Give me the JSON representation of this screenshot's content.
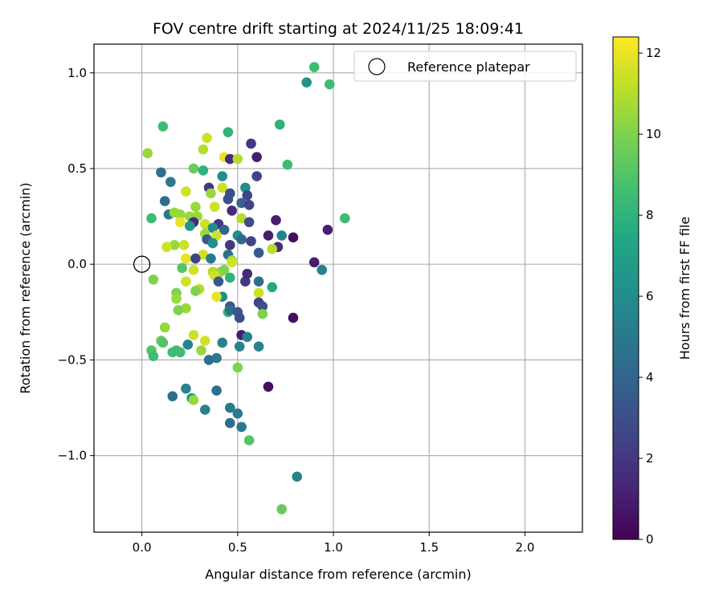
{
  "chart_data": {
    "type": "scatter",
    "title": "FOV centre drift starting at 2024/11/25 18:09:41",
    "xlabel": "Angular distance from reference (arcmin)",
    "ylabel": "Rotation from reference (arcmin)",
    "xlim": [
      -0.25,
      2.3
    ],
    "ylim": [
      -1.4,
      1.15
    ],
    "xticks": [
      0.0,
      0.5,
      1.0,
      1.5,
      2.0
    ],
    "xtick_labels": [
      "0.0",
      "0.5",
      "1.0",
      "1.5",
      "2.0"
    ],
    "yticks": [
      1.0,
      0.5,
      0.0,
      -0.5,
      -1.0
    ],
    "ytick_labels": [
      "1.0",
      "0.5",
      "0.0",
      "−0.5",
      "−1.0"
    ],
    "grid": true,
    "legend": {
      "position": "top-right",
      "entries": [
        "Reference platepar"
      ]
    },
    "reference_point": {
      "x": 0.0,
      "y": 0.0
    },
    "colorbar": {
      "label": "Hours from first FF file",
      "range": [
        0,
        12.4
      ],
      "ticks": [
        0,
        2,
        4,
        6,
        8,
        10,
        12
      ],
      "tick_labels": [
        "0",
        "2",
        "4",
        "6",
        "8",
        "10",
        "12"
      ],
      "colormap": "viridis"
    },
    "points": [
      {
        "x": 0.9,
        "y": 1.03,
        "c": 8.5
      },
      {
        "x": 0.86,
        "y": 0.95,
        "c": 6.3
      },
      {
        "x": 0.98,
        "y": 0.94,
        "c": 8.5
      },
      {
        "x": 0.72,
        "y": 0.73,
        "c": 8.0
      },
      {
        "x": 0.11,
        "y": 0.72,
        "c": 8.5
      },
      {
        "x": 0.45,
        "y": 0.69,
        "c": 8.0
      },
      {
        "x": 0.34,
        "y": 0.66,
        "c": 11.5
      },
      {
        "x": 0.57,
        "y": 0.63,
        "c": 2.0
      },
      {
        "x": 0.32,
        "y": 0.6,
        "c": 11.0
      },
      {
        "x": 0.03,
        "y": 0.58,
        "c": 10.5
      },
      {
        "x": 0.6,
        "y": 0.56,
        "c": 1.0
      },
      {
        "x": 0.43,
        "y": 0.56,
        "c": 12.0
      },
      {
        "x": 0.46,
        "y": 0.55,
        "c": 1.5
      },
      {
        "x": 0.5,
        "y": 0.55,
        "c": 11.0
      },
      {
        "x": 0.76,
        "y": 0.52,
        "c": 8.5
      },
      {
        "x": 0.27,
        "y": 0.5,
        "c": 9.5
      },
      {
        "x": 0.32,
        "y": 0.49,
        "c": 8.0
      },
      {
        "x": 0.1,
        "y": 0.48,
        "c": 4.5
      },
      {
        "x": 0.42,
        "y": 0.46,
        "c": 6.0
      },
      {
        "x": 0.6,
        "y": 0.46,
        "c": 2.5
      },
      {
        "x": 0.15,
        "y": 0.43,
        "c": 5.0
      },
      {
        "x": 0.35,
        "y": 0.4,
        "c": 2.0
      },
      {
        "x": 0.42,
        "y": 0.4,
        "c": 11.5
      },
      {
        "x": 0.54,
        "y": 0.4,
        "c": 6.0
      },
      {
        "x": 0.23,
        "y": 0.38,
        "c": 11.5
      },
      {
        "x": 0.36,
        "y": 0.37,
        "c": 10.5
      },
      {
        "x": 0.46,
        "y": 0.37,
        "c": 3.0
      },
      {
        "x": 0.55,
        "y": 0.36,
        "c": 2.5
      },
      {
        "x": 0.45,
        "y": 0.34,
        "c": 3.0
      },
      {
        "x": 0.12,
        "y": 0.33,
        "c": 4.5
      },
      {
        "x": 0.52,
        "y": 0.32,
        "c": 4.0
      },
      {
        "x": 0.56,
        "y": 0.31,
        "c": 2.5
      },
      {
        "x": 0.28,
        "y": 0.3,
        "c": 10.5
      },
      {
        "x": 0.38,
        "y": 0.3,
        "c": 11.5
      },
      {
        "x": 0.47,
        "y": 0.28,
        "c": 1.5
      },
      {
        "x": 0.14,
        "y": 0.26,
        "c": 5.0
      },
      {
        "x": 0.17,
        "y": 0.27,
        "c": 10.5
      },
      {
        "x": 0.2,
        "y": 0.26,
        "c": 10.5
      },
      {
        "x": 0.29,
        "y": 0.25,
        "c": 10.5
      },
      {
        "x": 0.25,
        "y": 0.25,
        "c": 10.5
      },
      {
        "x": 0.05,
        "y": 0.24,
        "c": 8.5
      },
      {
        "x": 0.52,
        "y": 0.24,
        "c": 11.0
      },
      {
        "x": 0.56,
        "y": 0.22,
        "c": 3.0
      },
      {
        "x": 0.7,
        "y": 0.23,
        "c": 1.0
      },
      {
        "x": 1.06,
        "y": 0.24,
        "c": 8.5
      },
      {
        "x": 0.2,
        "y": 0.22,
        "c": 12.0
      },
      {
        "x": 0.27,
        "y": 0.22,
        "c": 1.5
      },
      {
        "x": 0.33,
        "y": 0.21,
        "c": 11.5
      },
      {
        "x": 0.4,
        "y": 0.21,
        "c": 2.0
      },
      {
        "x": 0.25,
        "y": 0.2,
        "c": 6.5
      },
      {
        "x": 0.37,
        "y": 0.19,
        "c": 6.0
      },
      {
        "x": 0.43,
        "y": 0.18,
        "c": 4.0
      },
      {
        "x": 0.97,
        "y": 0.18,
        "c": 1.0
      },
      {
        "x": 0.33,
        "y": 0.16,
        "c": 10.5
      },
      {
        "x": 0.39,
        "y": 0.15,
        "c": 11.5
      },
      {
        "x": 0.5,
        "y": 0.15,
        "c": 6.0
      },
      {
        "x": 0.73,
        "y": 0.15,
        "c": 5.5
      },
      {
        "x": 0.66,
        "y": 0.15,
        "c": 1.0
      },
      {
        "x": 0.79,
        "y": 0.14,
        "c": 0.5
      },
      {
        "x": 0.34,
        "y": 0.13,
        "c": 3.5
      },
      {
        "x": 0.52,
        "y": 0.13,
        "c": 4.0
      },
      {
        "x": 0.57,
        "y": 0.12,
        "c": 2.5
      },
      {
        "x": 0.17,
        "y": 0.1,
        "c": 10.5
      },
      {
        "x": 0.22,
        "y": 0.1,
        "c": 11.5
      },
      {
        "x": 0.37,
        "y": 0.11,
        "c": 6.0
      },
      {
        "x": 0.46,
        "y": 0.1,
        "c": 2.0
      },
      {
        "x": 0.13,
        "y": 0.09,
        "c": 11.5
      },
      {
        "x": 0.71,
        "y": 0.09,
        "c": 1.5
      },
      {
        "x": 0.68,
        "y": 0.08,
        "c": 11.0
      },
      {
        "x": 0.61,
        "y": 0.06,
        "c": 3.5
      },
      {
        "x": 0.32,
        "y": 0.05,
        "c": 11.5
      },
      {
        "x": 0.45,
        "y": 0.05,
        "c": 4.5
      },
      {
        "x": 0.23,
        "y": 0.03,
        "c": 12.0
      },
      {
        "x": 0.28,
        "y": 0.03,
        "c": 2.5
      },
      {
        "x": 0.36,
        "y": 0.03,
        "c": 5.0
      },
      {
        "x": 0.47,
        "y": 0.02,
        "c": 10.5
      },
      {
        "x": 0.47,
        "y": 0.01,
        "c": 11.5
      },
      {
        "x": 0.9,
        "y": 0.01,
        "c": 1.0
      },
      {
        "x": 0.21,
        "y": -0.02,
        "c": 9.0
      },
      {
        "x": 0.27,
        "y": -0.03,
        "c": 11.5
      },
      {
        "x": 0.94,
        "y": -0.03,
        "c": 5.5
      },
      {
        "x": 0.37,
        "y": -0.04,
        "c": 11.0
      },
      {
        "x": 0.41,
        "y": -0.04,
        "c": 10.5
      },
      {
        "x": 0.43,
        "y": -0.03,
        "c": 10.0
      },
      {
        "x": 0.38,
        "y": -0.06,
        "c": 11.5
      },
      {
        "x": 0.46,
        "y": -0.07,
        "c": 8.0
      },
      {
        "x": 0.61,
        "y": -0.09,
        "c": 4.5
      },
      {
        "x": 0.23,
        "y": -0.09,
        "c": 11.5
      },
      {
        "x": 0.4,
        "y": -0.09,
        "c": 3.5
      },
      {
        "x": 0.06,
        "y": -0.08,
        "c": 10.0
      },
      {
        "x": 0.54,
        "y": -0.09,
        "c": 2.0
      },
      {
        "x": 0.55,
        "y": -0.05,
        "c": 1.5
      },
      {
        "x": 0.68,
        "y": -0.12,
        "c": 7.5
      },
      {
        "x": 0.3,
        "y": -0.13,
        "c": 11.0
      },
      {
        "x": 0.28,
        "y": -0.14,
        "c": 10.0
      },
      {
        "x": 0.61,
        "y": -0.15,
        "c": 11.5
      },
      {
        "x": 0.18,
        "y": -0.15,
        "c": 10.0
      },
      {
        "x": 0.42,
        "y": -0.17,
        "c": 6.0
      },
      {
        "x": 0.39,
        "y": -0.17,
        "c": 12.0
      },
      {
        "x": 0.18,
        "y": -0.18,
        "c": 10.5
      },
      {
        "x": 0.61,
        "y": -0.2,
        "c": 2.5
      },
      {
        "x": 0.46,
        "y": -0.22,
        "c": 3.5
      },
      {
        "x": 0.63,
        "y": -0.22,
        "c": 3.0
      },
      {
        "x": 0.23,
        "y": -0.23,
        "c": 10.5
      },
      {
        "x": 0.19,
        "y": -0.24,
        "c": 10.0
      },
      {
        "x": 0.45,
        "y": -0.25,
        "c": 8.0
      },
      {
        "x": 0.46,
        "y": -0.24,
        "c": 4.5
      },
      {
        "x": 0.5,
        "y": -0.25,
        "c": 3.5
      },
      {
        "x": 0.63,
        "y": -0.26,
        "c": 10.0
      },
      {
        "x": 0.51,
        "y": -0.28,
        "c": 3.0
      },
      {
        "x": 0.79,
        "y": -0.28,
        "c": 0.5
      },
      {
        "x": 0.12,
        "y": -0.33,
        "c": 10.5
      },
      {
        "x": 0.52,
        "y": -0.37,
        "c": 1.0
      },
      {
        "x": 0.55,
        "y": -0.38,
        "c": 5.5
      },
      {
        "x": 0.27,
        "y": -0.37,
        "c": 11.5
      },
      {
        "x": 0.33,
        "y": -0.4,
        "c": 11.5
      },
      {
        "x": 0.1,
        "y": -0.4,
        "c": 9.5
      },
      {
        "x": 0.24,
        "y": -0.42,
        "c": 5.5
      },
      {
        "x": 0.42,
        "y": -0.41,
        "c": 5.5
      },
      {
        "x": 0.11,
        "y": -0.41,
        "c": 9.0
      },
      {
        "x": 0.51,
        "y": -0.43,
        "c": 5.5
      },
      {
        "x": 0.61,
        "y": -0.43,
        "c": 5.5
      },
      {
        "x": 0.31,
        "y": -0.45,
        "c": 10.5
      },
      {
        "x": 0.05,
        "y": -0.45,
        "c": 9.0
      },
      {
        "x": 0.16,
        "y": -0.46,
        "c": 8.5
      },
      {
        "x": 0.18,
        "y": -0.45,
        "c": 8.5
      },
      {
        "x": 0.2,
        "y": -0.46,
        "c": 8.5
      },
      {
        "x": 0.06,
        "y": -0.48,
        "c": 8.5
      },
      {
        "x": 0.39,
        "y": -0.49,
        "c": 5.0
      },
      {
        "x": 0.35,
        "y": -0.5,
        "c": 4.5
      },
      {
        "x": 0.5,
        "y": -0.54,
        "c": 10.0
      },
      {
        "x": 0.66,
        "y": -0.64,
        "c": 0.5
      },
      {
        "x": 0.23,
        "y": -0.65,
        "c": 5.5
      },
      {
        "x": 0.39,
        "y": -0.66,
        "c": 4.5
      },
      {
        "x": 0.16,
        "y": -0.69,
        "c": 4.5
      },
      {
        "x": 0.26,
        "y": -0.7,
        "c": 6.5
      },
      {
        "x": 0.27,
        "y": -0.71,
        "c": 10.5
      },
      {
        "x": 0.46,
        "y": -0.75,
        "c": 5.0
      },
      {
        "x": 0.33,
        "y": -0.76,
        "c": 5.5
      },
      {
        "x": 0.5,
        "y": -0.78,
        "c": 5.0
      },
      {
        "x": 0.46,
        "y": -0.83,
        "c": 4.5
      },
      {
        "x": 0.52,
        "y": -0.85,
        "c": 5.0
      },
      {
        "x": 0.56,
        "y": -0.92,
        "c": 9.0
      },
      {
        "x": 0.81,
        "y": -1.11,
        "c": 5.5
      },
      {
        "x": 0.73,
        "y": -1.28,
        "c": 9.5
      }
    ]
  }
}
